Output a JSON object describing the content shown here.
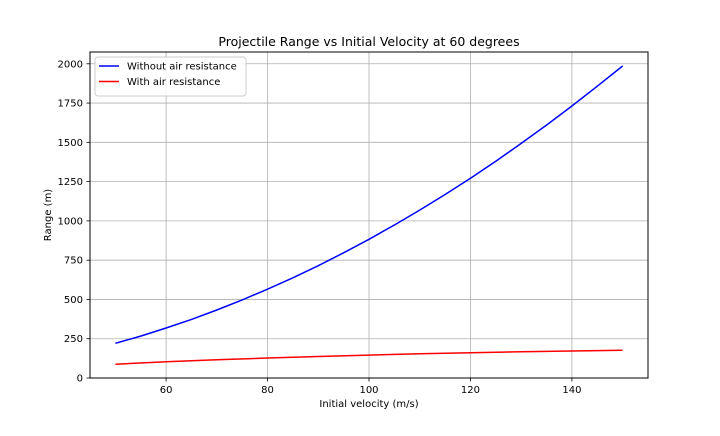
{
  "chart_data": {
    "type": "line",
    "title": "Projectile Range vs Initial Velocity at 60 degrees",
    "xlabel": "Initial velocity (m/s)",
    "ylabel": "Range (m)",
    "xlim": [
      45,
      155
    ],
    "ylim": [
      0,
      2075
    ],
    "xticks": [
      60,
      80,
      100,
      120,
      140
    ],
    "yticks": [
      0,
      250,
      500,
      750,
      1000,
      1250,
      1500,
      1750,
      2000
    ],
    "grid": true,
    "legend_position": "top-left",
    "series": [
      {
        "name": "Without air resistance",
        "color": "#0000ff",
        "x": [
          50,
          55,
          60,
          65,
          70,
          75,
          80,
          85,
          90,
          95,
          100,
          105,
          110,
          115,
          120,
          125,
          130,
          135,
          140,
          145,
          150
        ],
        "y": [
          221,
          267,
          318,
          373,
          433,
          497,
          565,
          638,
          715,
          797,
          883,
          974,
          1069,
          1168,
          1272,
          1380,
          1493,
          1610,
          1731,
          1857,
          1986
        ]
      },
      {
        "name": "With air resistance",
        "color": "#ff0000",
        "x": [
          50,
          60,
          70,
          80,
          90,
          100,
          110,
          120,
          130,
          140,
          150
        ],
        "y": [
          88,
          103,
          116,
          127,
          137,
          146,
          154,
          161,
          167,
          172,
          177
        ]
      }
    ]
  }
}
